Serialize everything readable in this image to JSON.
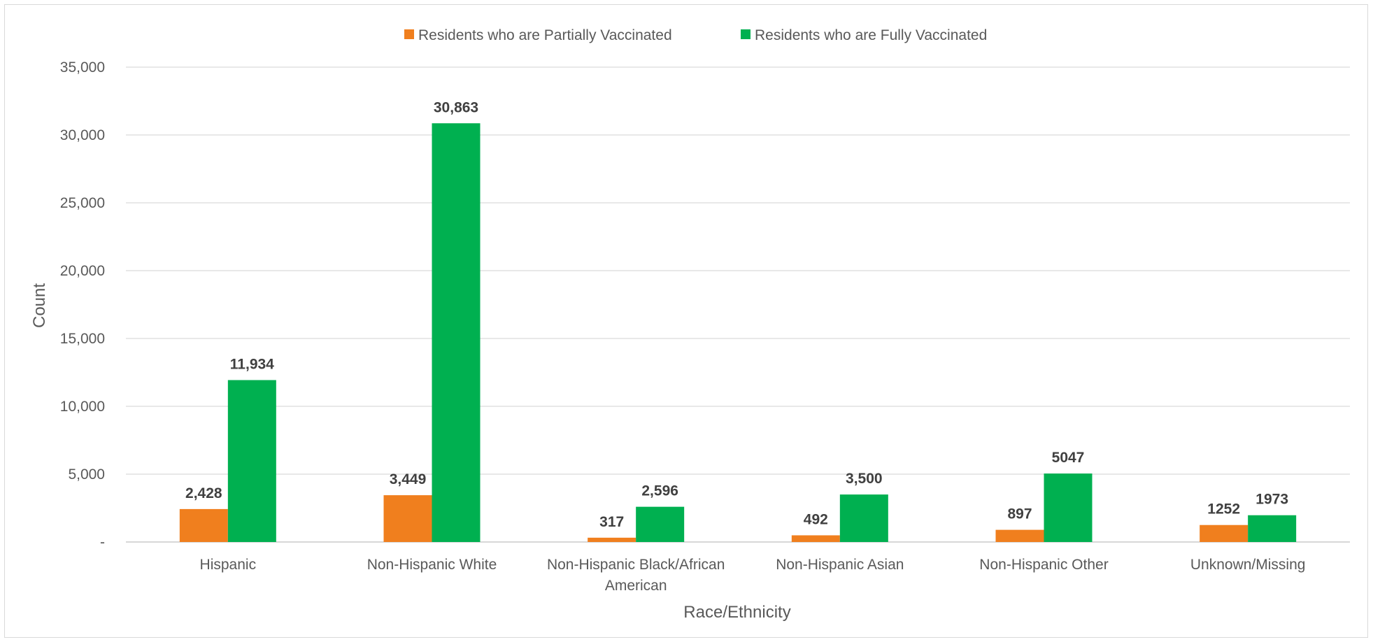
{
  "chart_data": {
    "type": "bar",
    "title": "",
    "xlabel": "Race/Ethnicity",
    "ylabel": "Count",
    "ylim": [
      0,
      35000
    ],
    "y_ticks": [
      {
        "value": 0,
        "label": "-"
      },
      {
        "value": 5000,
        "label": "5,000"
      },
      {
        "value": 10000,
        "label": "10,000"
      },
      {
        "value": 15000,
        "label": "15,000"
      },
      {
        "value": 20000,
        "label": "20,000"
      },
      {
        "value": 25000,
        "label": "25,000"
      },
      {
        "value": 30000,
        "label": "30,000"
      },
      {
        "value": 35000,
        "label": "35,000"
      }
    ],
    "categories": [
      [
        "Hispanic"
      ],
      [
        "Non-Hispanic White"
      ],
      [
        "Non-Hispanic Black/African",
        "American"
      ],
      [
        "Non-Hispanic Asian"
      ],
      [
        "Non-Hispanic Other"
      ],
      [
        "Unknown/Missing"
      ]
    ],
    "series": [
      {
        "name": "Residents who are Partially Vaccinated",
        "color": "#f07f1e",
        "values": [
          2428,
          3449,
          317,
          492,
          897,
          1252
        ],
        "labels": [
          "2,428",
          "3,449",
          "317",
          "492",
          "897",
          "1252"
        ]
      },
      {
        "name": "Residents who are Fully Vaccinated",
        "color": "#00b050",
        "values": [
          11934,
          30863,
          2596,
          3500,
          5047,
          1973
        ],
        "labels": [
          "11,934",
          "30,863",
          "2,596",
          "3,500",
          "5047",
          "1973"
        ]
      }
    ],
    "grid": true,
    "legend_position": "top"
  }
}
